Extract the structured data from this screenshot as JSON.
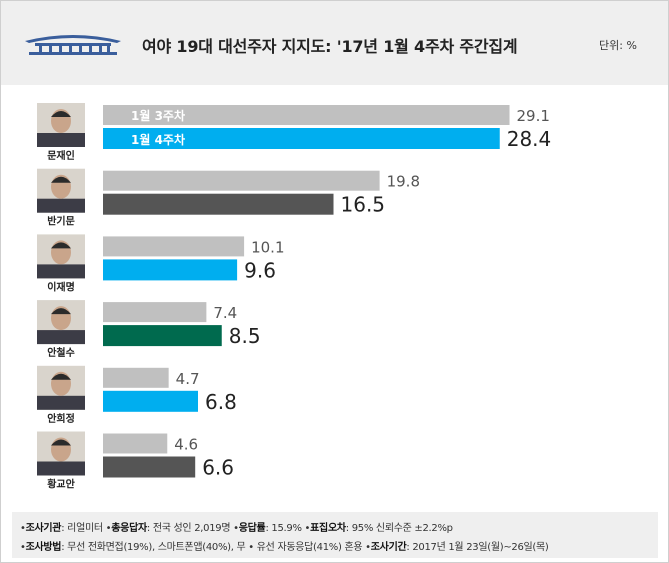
{
  "header": {
    "title": "여야 19대 대선주자 지지도: '17년 1월 4주차 주간집계",
    "unit": "단위: %"
  },
  "chart_data": {
    "type": "bar",
    "title": "여야 19대 대선주자 지지도: '17년 1월 4주차 주간집계",
    "unit": "%",
    "categories": [
      "문재인",
      "반기문",
      "이재명",
      "안철수",
      "안희정",
      "황교안"
    ],
    "series": [
      {
        "name": "1월 3주차",
        "values": [
          29.1,
          19.8,
          10.1,
          7.4,
          4.7,
          4.6
        ],
        "color": "#c0c0c0"
      },
      {
        "name": "1월 4주차",
        "values": [
          28.4,
          16.5,
          9.6,
          8.5,
          6.8,
          6.6
        ],
        "colors": [
          "#00aeef",
          "#555555",
          "#00aeef",
          "#006a4e",
          "#00aeef",
          "#555555"
        ]
      }
    ],
    "xlim": [
      0,
      30
    ],
    "legend_placement": "inside-first-bars",
    "grid": false
  },
  "footer": {
    "line1": [
      {
        "label": "조사기관",
        "value": ": 리얼미터"
      },
      {
        "label": "총응답자",
        "value": ": 전국 성인 2,019명"
      },
      {
        "label": "응답률",
        "value": ": 15.9%"
      },
      {
        "label": "표집오차",
        "value": ": 95% 신뢰수준 ±2.2%p"
      }
    ],
    "line2": [
      {
        "label": "조사방법",
        "value": ": 무선 전화면접(19%), 스마트폰앱(40%), 무 • 유선 자동응답(41%) 혼용"
      },
      {
        "label": "조사기간",
        "value": ": 2017년 1월 23일(월)~26일(목)"
      }
    ]
  }
}
